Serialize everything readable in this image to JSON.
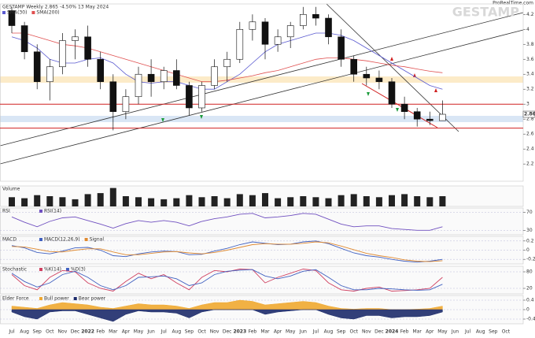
{
  "header": {
    "watermark": "GESTAMP",
    "source": "ProRealTime.com"
  },
  "chart_data": [
    {
      "type": "candlestick",
      "title": "GESTAMP Weekly 2.865 -4.50% 13 May 2024",
      "categories": [
        "Jul",
        "Aug",
        "Sep",
        "Oct",
        "Nov",
        "Dec",
        "2022",
        "Feb",
        "Mar",
        "Apr",
        "May",
        "Jun",
        "Jul",
        "Aug",
        "Sep",
        "Oct",
        "Nov",
        "Dec",
        "2023",
        "Feb",
        "Mar",
        "Apr",
        "May",
        "Jun",
        "Jul",
        "Aug",
        "Sep",
        "Oct",
        "Nov",
        "Dec",
        "2024",
        "Feb",
        "Mar",
        "Apr",
        "May",
        "Jun",
        "Jul",
        "Aug",
        "Sep",
        "Oct"
      ],
      "open": [
        4.25,
        4.05,
        3.7,
        3.3,
        3.5,
        3.85,
        3.9,
        3.6,
        3.3,
        2.9,
        3.1,
        3.4,
        3.3,
        3.45,
        3.25,
        2.95,
        3.25,
        3.5,
        3.6,
        4.0,
        4.1,
        3.8,
        3.9,
        4.05,
        4.2,
        4.15,
        3.9,
        3.6,
        3.4,
        3.35,
        3.3,
        3.0,
        2.9,
        2.8,
        2.78,
        null,
        null,
        null,
        null,
        null
      ],
      "high": [
        4.3,
        4.1,
        3.8,
        3.6,
        3.95,
        4.0,
        4.05,
        3.7,
        3.4,
        3.2,
        3.5,
        3.6,
        3.5,
        3.6,
        3.3,
        3.3,
        3.6,
        3.7,
        4.1,
        4.2,
        4.15,
        4.0,
        4.1,
        4.3,
        4.3,
        4.2,
        4.0,
        3.65,
        3.5,
        3.45,
        3.35,
        3.1,
        2.95,
        2.9,
        3.05,
        null,
        null,
        null,
        null,
        null
      ],
      "low": [
        3.95,
        3.6,
        3.2,
        3.05,
        3.4,
        3.6,
        3.5,
        3.2,
        2.65,
        2.8,
        3.0,
        3.1,
        3.2,
        3.2,
        2.85,
        2.9,
        3.2,
        3.3,
        3.55,
        3.85,
        3.6,
        3.7,
        3.75,
        4.0,
        4.05,
        3.8,
        3.5,
        3.3,
        3.25,
        3.2,
        2.95,
        2.8,
        2.7,
        2.72,
        2.78,
        null,
        null,
        null,
        null,
        null
      ],
      "close": [
        4.05,
        3.7,
        3.3,
        3.5,
        3.85,
        3.9,
        3.6,
        3.3,
        2.9,
        3.1,
        3.4,
        3.3,
        3.45,
        3.25,
        2.95,
        3.25,
        3.5,
        3.6,
        4.0,
        4.1,
        3.8,
        3.9,
        4.05,
        4.2,
        4.15,
        3.9,
        3.6,
        3.4,
        3.35,
        3.3,
        3.0,
        2.9,
        2.8,
        2.78,
        2.865,
        null,
        null,
        null,
        null,
        null
      ],
      "series": [
        {
          "name": "SMA(30)",
          "color": "#5a5ad0",
          "values": [
            3.9,
            3.85,
            3.75,
            3.6,
            3.55,
            3.55,
            3.6,
            3.62,
            3.55,
            3.4,
            3.3,
            3.28,
            3.3,
            3.3,
            3.25,
            3.2,
            3.2,
            3.3,
            3.4,
            3.55,
            3.7,
            3.8,
            3.85,
            3.9,
            3.95,
            3.95,
            3.92,
            3.85,
            3.75,
            3.65,
            3.55,
            3.45,
            3.35,
            3.25,
            3.2,
            null,
            null,
            null,
            null,
            null
          ]
        },
        {
          "name": "SMA(200)",
          "color": "#e05050",
          "values": [
            3.95,
            3.95,
            3.9,
            3.85,
            3.8,
            3.78,
            3.75,
            3.7,
            3.65,
            3.6,
            3.55,
            3.5,
            3.45,
            3.4,
            3.35,
            3.3,
            3.3,
            3.32,
            3.35,
            3.38,
            3.42,
            3.45,
            3.5,
            3.55,
            3.6,
            3.62,
            3.62,
            3.6,
            3.58,
            3.55,
            3.52,
            3.5,
            3.47,
            3.44,
            3.42,
            null,
            null,
            null,
            null,
            null
          ]
        }
      ],
      "hlines": [
        3.0,
        2.68
      ],
      "hline_color": "#d02020",
      "ylim": [
        1.97,
        4.34
      ],
      "yticks": [
        2.2,
        2.4,
        2.6,
        2.8,
        3,
        3.2,
        3.4,
        3.6,
        3.8,
        4,
        4.2
      ],
      "grid": false,
      "up_color": "#ffffff",
      "down_color": "#111111"
    },
    {
      "type": "bar",
      "title": "Volume",
      "color": "#222222",
      "values": [
        0.9,
        0.8,
        1.1,
        1.0,
        0.9,
        0.7,
        1.2,
        1.3,
        1.8,
        1.0,
        0.9,
        0.8,
        0.7,
        0.8,
        1.1,
        0.9,
        1.0,
        0.8,
        1.2,
        1.1,
        1.3,
        0.8,
        0.9,
        1.0,
        0.9,
        0.8,
        1.1,
        1.2,
        1.0,
        0.9,
        1.1,
        1.2,
        1.0,
        0.9,
        1.0,
        null,
        null,
        null,
        null,
        null
      ],
      "ylim": [
        0,
        2
      ],
      "yticks": []
    },
    {
      "type": "line",
      "title": "RSI",
      "series": [
        {
          "name": "RSI(14)",
          "color": "#7050c0",
          "values": [
            60,
            48,
            38,
            50,
            58,
            60,
            52,
            44,
            35,
            45,
            52,
            48,
            52,
            48,
            40,
            50,
            56,
            60,
            66,
            68,
            58,
            60,
            63,
            68,
            66,
            55,
            44,
            38,
            40,
            40,
            34,
            32,
            30,
            30,
            38,
            null,
            null,
            null,
            null,
            null
          ]
        }
      ],
      "ylim": [
        20,
        80
      ],
      "yticks": [
        30,
        70
      ],
      "grid": true
    },
    {
      "type": "line",
      "title": "MACD",
      "series": [
        {
          "name": "MACD(12,26,9)",
          "color": "#4060c0",
          "values": [
            0.1,
            0.05,
            -0.05,
            -0.08,
            -0.02,
            0.05,
            0.06,
            0,
            -0.12,
            -0.14,
            -0.08,
            -0.04,
            -0.02,
            -0.03,
            -0.1,
            -0.09,
            -0.02,
            0.04,
            0.12,
            0.18,
            0.15,
            0.12,
            0.13,
            0.18,
            0.2,
            0.14,
            0.04,
            -0.06,
            -0.12,
            -0.15,
            -0.2,
            -0.24,
            -0.26,
            -0.24,
            -0.2,
            null,
            null,
            null,
            null,
            null
          ]
        },
        {
          "name": "Signal",
          "color": "#e08a30",
          "values": [
            0.08,
            0.07,
            0.02,
            -0.03,
            -0.04,
            0,
            0.03,
            0.03,
            -0.04,
            -0.1,
            -0.1,
            -0.07,
            -0.04,
            -0.03,
            -0.06,
            -0.08,
            -0.05,
            0,
            0.06,
            0.12,
            0.14,
            0.13,
            0.13,
            0.15,
            0.18,
            0.16,
            0.09,
            0.01,
            -0.07,
            -0.12,
            -0.16,
            -0.21,
            -0.24,
            -0.25,
            -0.23,
            null,
            null,
            null,
            null,
            null
          ]
        }
      ],
      "ylim": [
        -0.3,
        0.3
      ],
      "yticks": [
        -0.2,
        0,
        0.2
      ],
      "grid": true
    },
    {
      "type": "line",
      "title": "Stochastic",
      "series": [
        {
          "name": "%K(14)",
          "color": "#d04060",
          "values": [
            70,
            30,
            15,
            60,
            85,
            80,
            40,
            20,
            10,
            45,
            75,
            55,
            70,
            40,
            15,
            60,
            85,
            80,
            90,
            88,
            40,
            60,
            75,
            90,
            85,
            40,
            15,
            10,
            20,
            25,
            10,
            12,
            15,
            20,
            60,
            null,
            null,
            null,
            null,
            null
          ]
        },
        {
          "name": "%D(3)",
          "color": "#4060c0",
          "values": [
            75,
            45,
            25,
            40,
            70,
            82,
            60,
            30,
            15,
            30,
            60,
            62,
            65,
            55,
            30,
            40,
            70,
            82,
            86,
            88,
            65,
            55,
            65,
            82,
            88,
            60,
            30,
            15,
            15,
            20,
            18,
            15,
            13,
            15,
            35,
            null,
            null,
            null,
            null,
            null
          ]
        }
      ],
      "ylim": [
        0,
        100
      ],
      "yticks": [
        20,
        80
      ],
      "grid": true
    },
    {
      "type": "area",
      "title": "Elder Force",
      "series": [
        {
          "name": "Bull power",
          "color": "#f0a830",
          "values": [
            0.15,
            0.1,
            0.05,
            0.2,
            0.3,
            0.25,
            0.2,
            0.1,
            0.05,
            0.15,
            0.25,
            0.2,
            0.2,
            0.15,
            0.05,
            0.2,
            0.3,
            0.3,
            0.4,
            0.35,
            0.2,
            0.25,
            0.3,
            0.35,
            0.3,
            0.15,
            0.05,
            0.02,
            0.05,
            0.05,
            0,
            0,
            0.02,
            0.05,
            0.15,
            null,
            null,
            null,
            null,
            null
          ]
        },
        {
          "name": "Bear power",
          "color": "#1c2a6a",
          "values": [
            -0.1,
            -0.3,
            -0.4,
            -0.1,
            -0.05,
            -0.05,
            -0.2,
            -0.35,
            -0.5,
            -0.2,
            -0.05,
            -0.1,
            -0.1,
            -0.15,
            -0.35,
            -0.1,
            0,
            0,
            0,
            0,
            -0.2,
            -0.1,
            -0.05,
            0,
            0,
            -0.2,
            -0.35,
            -0.4,
            -0.25,
            -0.25,
            -0.35,
            -0.3,
            -0.3,
            -0.25,
            -0.1,
            null,
            null,
            null,
            null,
            null
          ]
        }
      ],
      "ylim": [
        -0.6,
        0.6
      ],
      "yticks": [
        -0.4,
        0,
        0.4
      ],
      "grid": true
    }
  ]
}
